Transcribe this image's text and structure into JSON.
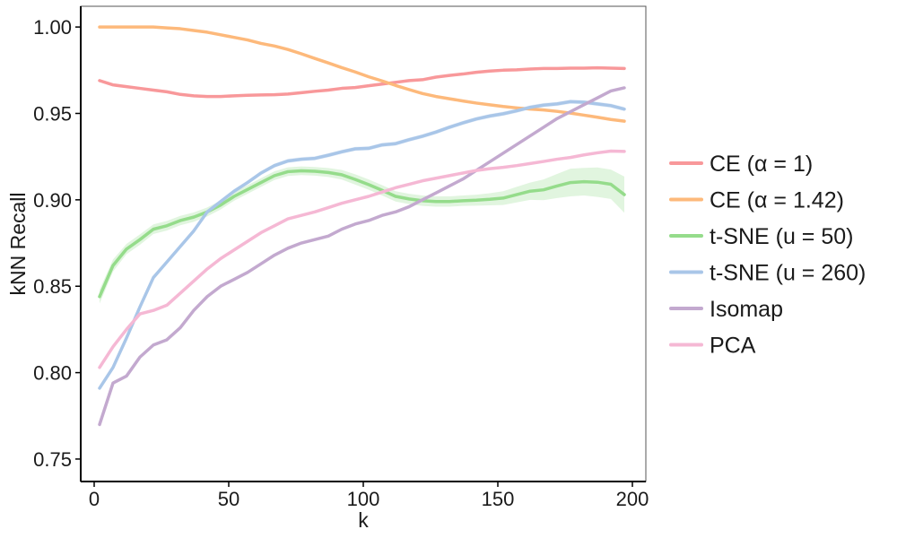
{
  "chart_data": {
    "type": "line",
    "title": "",
    "xlabel": "k",
    "ylabel": "kNN Recall",
    "xlim": [
      -5,
      205
    ],
    "ylim": [
      0.737,
      1.012
    ],
    "xticks": [
      0,
      50,
      100,
      150,
      200
    ],
    "yticks": [
      0.75,
      0.8,
      0.85,
      0.9,
      0.95,
      1.0
    ],
    "xtick_labels": [
      "0",
      "50",
      "100",
      "150",
      "200"
    ],
    "ytick_labels": [
      "0.75",
      "0.80",
      "0.85",
      "0.90",
      "0.95",
      "1.00"
    ],
    "grid": false,
    "legend_position": "right",
    "x": [
      2,
      7,
      12,
      17,
      22,
      27,
      32,
      37,
      42,
      47,
      52,
      57,
      62,
      67,
      72,
      77,
      82,
      87,
      92,
      97,
      102,
      107,
      112,
      117,
      122,
      127,
      132,
      137,
      142,
      147,
      152,
      157,
      162,
      167,
      172,
      177,
      182,
      187,
      192,
      197
    ],
    "series": [
      {
        "name": "CE (α = 1)",
        "color": "#f8989a",
        "values": [
          0.969,
          0.9665,
          0.9655,
          0.9645,
          0.9635,
          0.9625,
          0.961,
          0.9602,
          0.9598,
          0.9598,
          0.9602,
          0.9605,
          0.9607,
          0.9608,
          0.9612,
          0.962,
          0.9628,
          0.9635,
          0.9645,
          0.965,
          0.966,
          0.967,
          0.968,
          0.969,
          0.9695,
          0.971,
          0.972,
          0.9728,
          0.9738,
          0.9745,
          0.975,
          0.9752,
          0.9757,
          0.976,
          0.976,
          0.9762,
          0.9762,
          0.9764,
          0.9762,
          0.976
        ],
        "band": 0.0004
      },
      {
        "name": "CE (α = 1.42)",
        "color": "#fdb97b",
        "values": [
          1.0,
          1.0,
          1.0,
          1.0,
          1.0,
          0.9995,
          0.999,
          0.998,
          0.997,
          0.9955,
          0.994,
          0.9925,
          0.9905,
          0.989,
          0.987,
          0.9845,
          0.9818,
          0.9792,
          0.9765,
          0.974,
          0.9712,
          0.9688,
          0.9662,
          0.9638,
          0.9615,
          0.9598,
          0.9585,
          0.9572,
          0.956,
          0.955,
          0.954,
          0.9532,
          0.9525,
          0.952,
          0.9512,
          0.9502,
          0.949,
          0.9478,
          0.9465,
          0.9455
        ],
        "band": 0.0004
      },
      {
        "name": "t-SNE (u = 50)",
        "color": "#95dc8b",
        "values": [
          0.844,
          0.862,
          0.8715,
          0.877,
          0.883,
          0.885,
          0.888,
          0.89,
          0.893,
          0.897,
          0.902,
          0.906,
          0.91,
          0.914,
          0.9163,
          0.9168,
          0.9165,
          0.9158,
          0.9145,
          0.9118,
          0.9088,
          0.9055,
          0.902,
          0.9005,
          0.8995,
          0.899,
          0.899,
          0.8995,
          0.8998,
          0.9003,
          0.901,
          0.903,
          0.905,
          0.9058,
          0.908,
          0.91,
          0.9105,
          0.9102,
          0.909,
          0.903
        ],
        "band_values": [
          0.004,
          0.0035,
          0.003,
          0.003,
          0.0028,
          0.0028,
          0.0027,
          0.0027,
          0.0026,
          0.0026,
          0.0025,
          0.0025,
          0.0025,
          0.0025,
          0.0025,
          0.0025,
          0.0025,
          0.0026,
          0.0028,
          0.003,
          0.003,
          0.003,
          0.003,
          0.003,
          0.003,
          0.003,
          0.003,
          0.003,
          0.0032,
          0.0035,
          0.004,
          0.0045,
          0.005,
          0.006,
          0.007,
          0.008,
          0.008,
          0.0085,
          0.0085,
          0.0105
        ]
      },
      {
        "name": "t-SNE (u = 260)",
        "color": "#a9c6e8",
        "values": [
          0.791,
          0.803,
          0.82,
          0.838,
          0.855,
          0.864,
          0.873,
          0.882,
          0.893,
          0.899,
          0.905,
          0.91,
          0.9155,
          0.9198,
          0.9225,
          0.9235,
          0.924,
          0.9258,
          0.9278,
          0.9295,
          0.9298,
          0.9318,
          0.9325,
          0.9348,
          0.9368,
          0.9392,
          0.942,
          0.9445,
          0.9468,
          0.9485,
          0.9498,
          0.9515,
          0.9535,
          0.9548,
          0.9555,
          0.9568,
          0.9565,
          0.9555,
          0.9545,
          0.9525
        ],
        "band": 0.0012
      },
      {
        "name": "Isomap",
        "color": "#c3a9cf",
        "values": [
          0.77,
          0.794,
          0.798,
          0.809,
          0.816,
          0.819,
          0.826,
          0.836,
          0.844,
          0.85,
          0.854,
          0.858,
          0.863,
          0.868,
          0.872,
          0.875,
          0.877,
          0.879,
          0.883,
          0.886,
          0.888,
          0.891,
          0.893,
          0.896,
          0.9,
          0.904,
          0.908,
          0.912,
          0.917,
          0.922,
          0.927,
          0.932,
          0.937,
          0.942,
          0.947,
          0.951,
          0.955,
          0.959,
          0.963,
          0.9648
        ],
        "band": 0
      },
      {
        "name": "PCA",
        "color": "#f5b8d4",
        "values": [
          0.803,
          0.815,
          0.825,
          0.834,
          0.836,
          0.839,
          0.846,
          0.853,
          0.86,
          0.866,
          0.871,
          0.876,
          0.881,
          0.885,
          0.889,
          0.891,
          0.893,
          0.8955,
          0.898,
          0.9,
          0.902,
          0.9045,
          0.907,
          0.909,
          0.911,
          0.9125,
          0.914,
          0.9155,
          0.917,
          0.918,
          0.9188,
          0.9198,
          0.921,
          0.9222,
          0.9235,
          0.9245,
          0.926,
          0.9272,
          0.9282,
          0.928
        ],
        "band": 0
      }
    ]
  }
}
